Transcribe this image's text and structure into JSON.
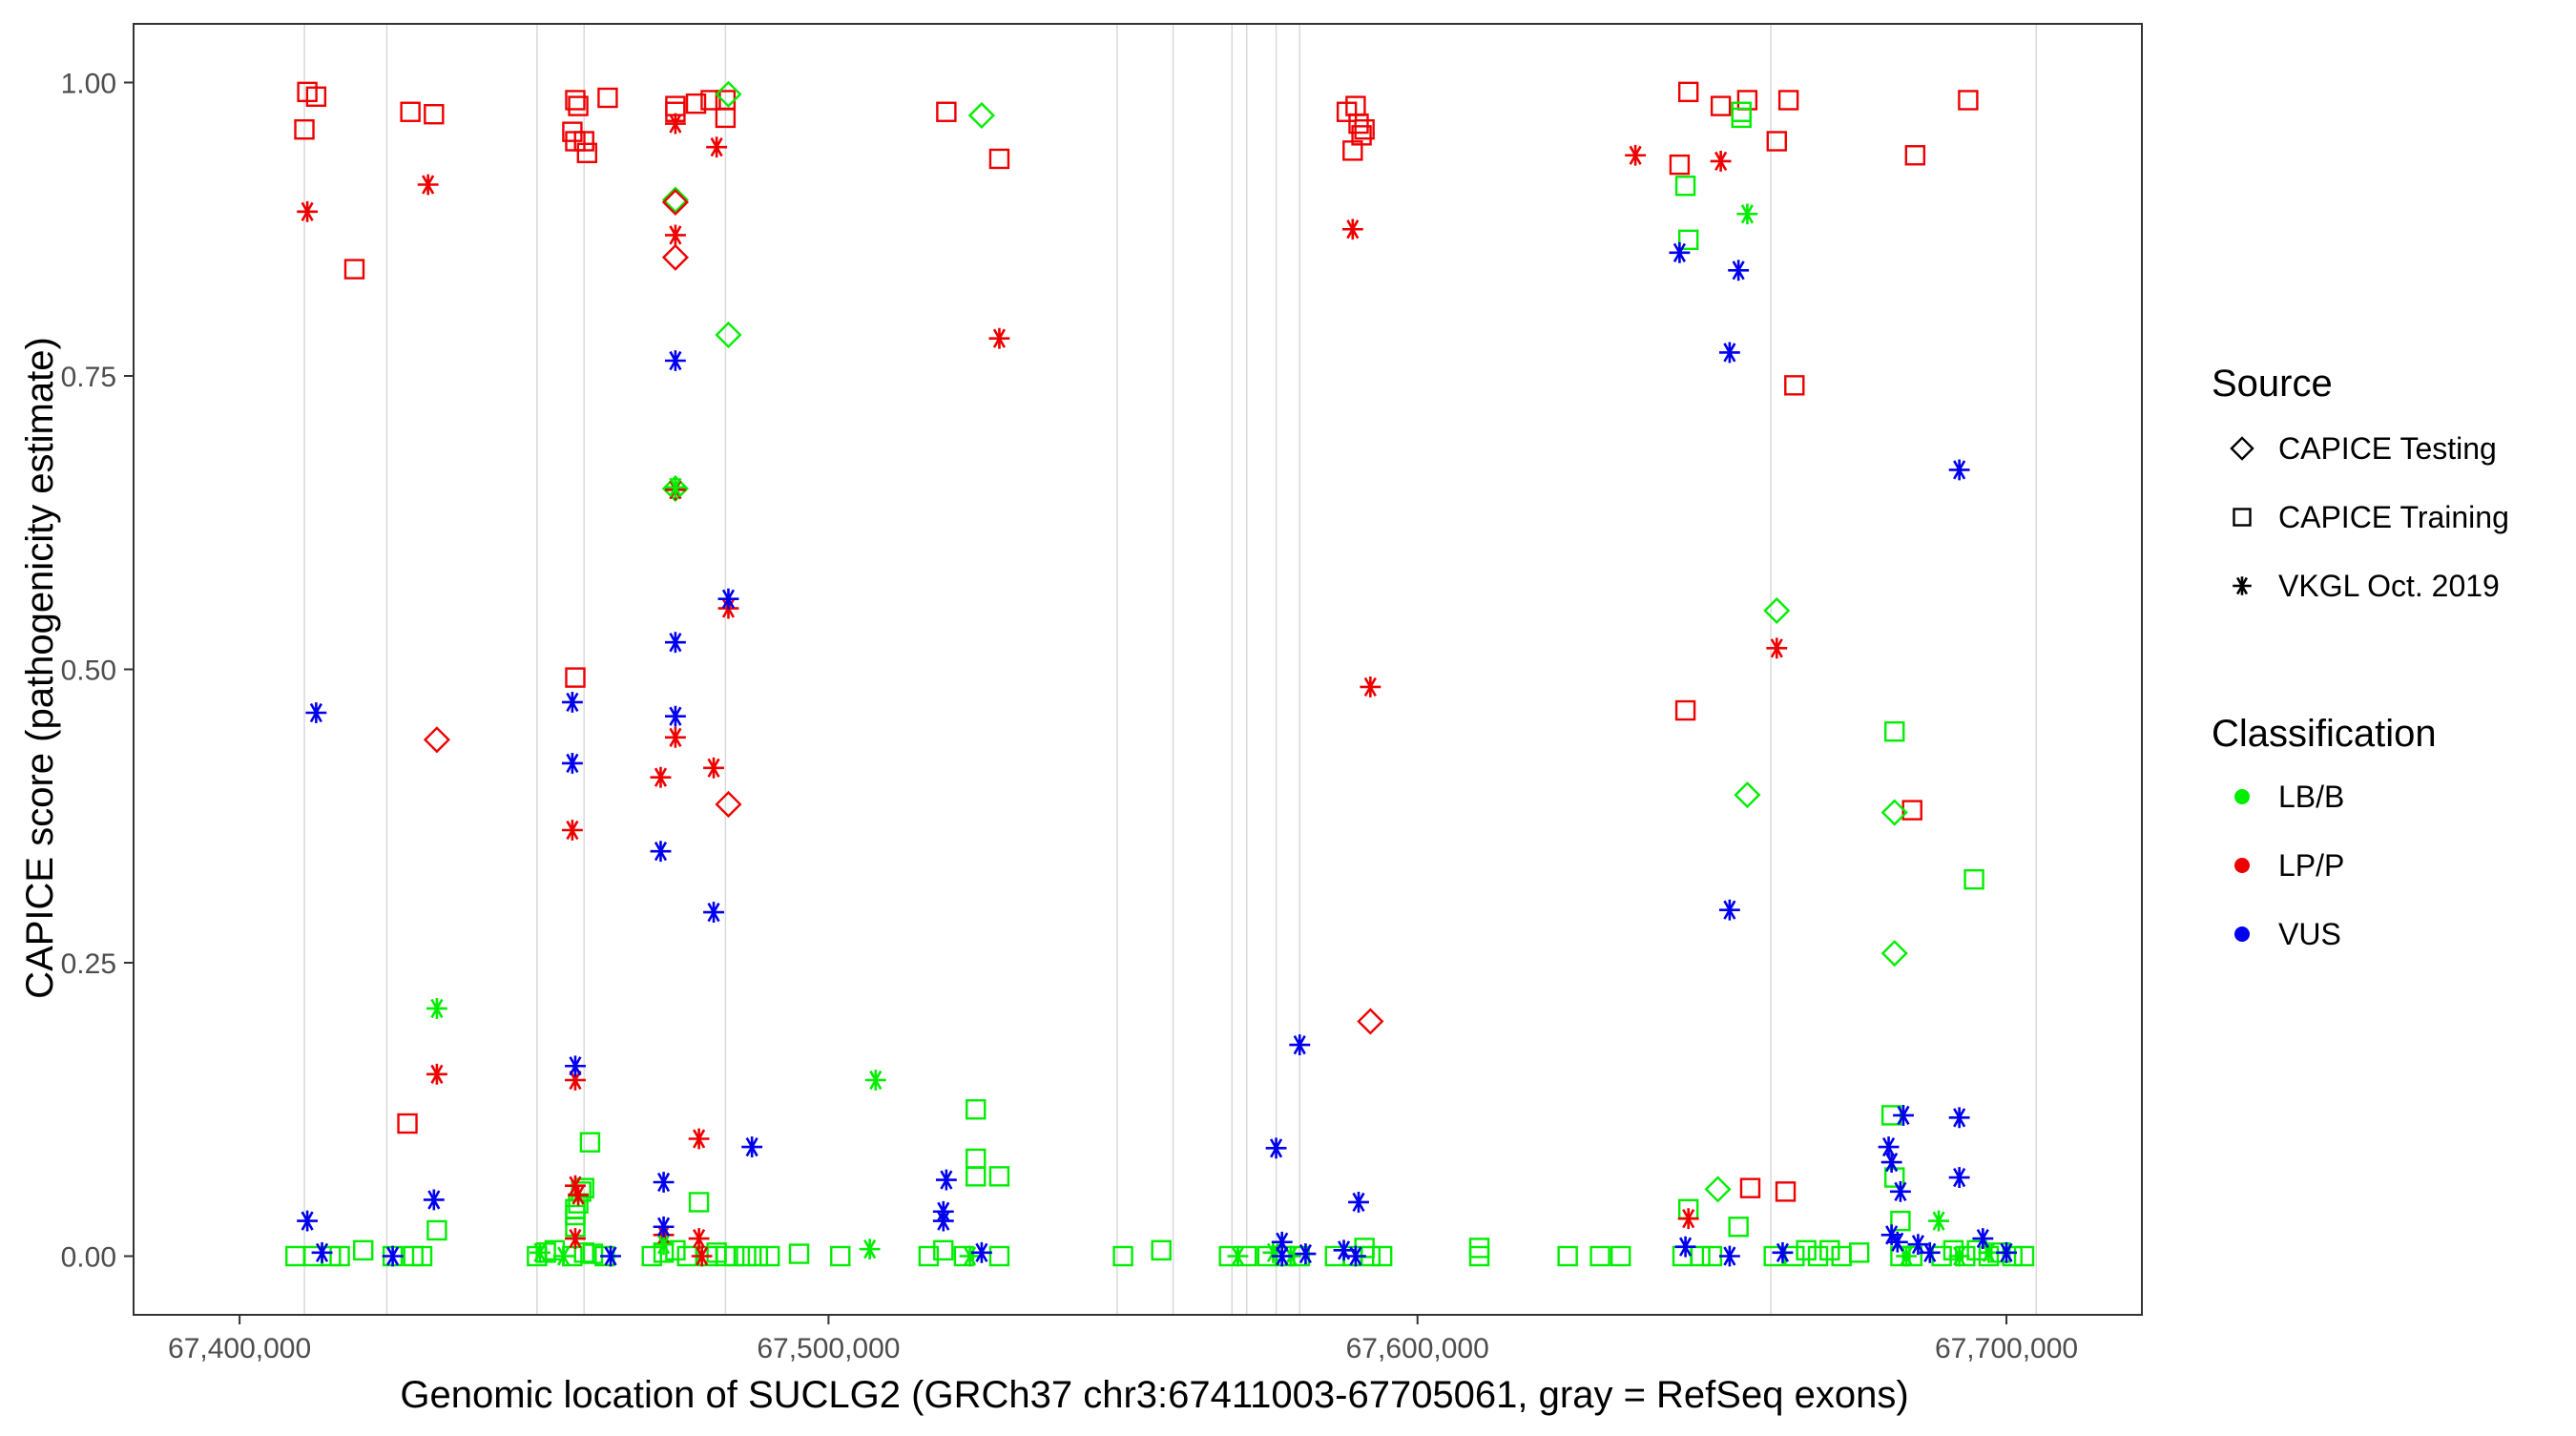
{
  "chart_data": {
    "type": "scatter",
    "title": "",
    "xlabel": "Genomic location of SUCLG2 (GRCh37 chr3:67411003-67705061, gray = RefSeq exons)",
    "ylabel": "CAPICE score (pathogenicity estimate)",
    "xlim": [
      67382000,
      67723000
    ],
    "ylim": [
      -0.05,
      1.05
    ],
    "x_ticks": [
      67400000,
      67500000,
      67600000,
      67700000
    ],
    "x_tick_labels": [
      "67,400,000",
      "67,500,000",
      "67,600,000",
      "67,700,000"
    ],
    "y_ticks": [
      0,
      0.25,
      0.5,
      0.75,
      1.0
    ],
    "y_tick_labels": [
      "0.00",
      "0.25",
      "0.50",
      "0.75",
      "1.00"
    ],
    "grid": false,
    "legend_position": "right",
    "exon_lines": [
      67411003,
      67425000,
      67450500,
      67458500,
      67482500,
      67549000,
      67558500,
      67568500,
      67571000,
      67576000,
      67580000,
      67660000,
      67705061
    ],
    "legends": [
      {
        "title": "Source",
        "entries": [
          {
            "label": "CAPICE Testing",
            "shape": "diamond"
          },
          {
            "label": "CAPICE Training",
            "shape": "square"
          },
          {
            "label": "VKGL Oct. 2019",
            "shape": "star"
          }
        ]
      },
      {
        "title": "Classification",
        "entries": [
          {
            "label": "LB/B",
            "color": "#00ee00"
          },
          {
            "label": "LP/P",
            "color": "#ee0000"
          },
          {
            "label": "VUS",
            "color": "#0000ee"
          }
        ]
      }
    ],
    "colors": {
      "LB/B": "#00ee00",
      "LP/P": "#ee0000",
      "VUS": "#0000ee"
    },
    "series": [
      {
        "name": "CAPICE Training LP/P",
        "shape": "square",
        "class": "LP/P",
        "points": [
          [
            67411500,
            0.992
          ],
          [
            67413000,
            0.988
          ],
          [
            67411000,
            0.96
          ],
          [
            67419500,
            0.841
          ],
          [
            67429000,
            0.975
          ],
          [
            67433000,
            0.973
          ],
          [
            67428500,
            0.113
          ],
          [
            67457000,
            0.985
          ],
          [
            67457500,
            0.98
          ],
          [
            67456500,
            0.958
          ],
          [
            67457000,
            0.95
          ],
          [
            67459000,
            0.94
          ],
          [
            67458500,
            0.95
          ],
          [
            67462500,
            0.987
          ],
          [
            67457000,
            0.493
          ],
          [
            67474000,
            0.98
          ],
          [
            67474000,
            0.975
          ],
          [
            67477500,
            0.982
          ],
          [
            67480000,
            0.985
          ],
          [
            67482500,
            0.985
          ],
          [
            67482500,
            0.97
          ],
          [
            67520000,
            0.975
          ],
          [
            67529000,
            0.935
          ],
          [
            67588000,
            0.975
          ],
          [
            67589500,
            0.98
          ],
          [
            67590000,
            0.965
          ],
          [
            67591000,
            0.96
          ],
          [
            67589000,
            0.942
          ],
          [
            67590500,
            0.955
          ],
          [
            67644500,
            0.93
          ],
          [
            67646000,
            0.992
          ],
          [
            67651500,
            0.98
          ],
          [
            67656000,
            0.985
          ],
          [
            67661000,
            0.95
          ],
          [
            67663000,
            0.985
          ],
          [
            67664000,
            0.742
          ],
          [
            67645500,
            0.465
          ],
          [
            67684500,
            0.938
          ],
          [
            67684000,
            0.38
          ],
          [
            67693500,
            0.985
          ],
          [
            67656500,
            0.058
          ],
          [
            67662500,
            0.055
          ]
        ]
      },
      {
        "name": "CAPICE Training LB/B",
        "shape": "square",
        "class": "LB/B",
        "points": [
          [
            67409500,
            0.0
          ],
          [
            67412500,
            0.0
          ],
          [
            67415500,
            0.0
          ],
          [
            67417000,
            0.0
          ],
          [
            67421000,
            0.005
          ],
          [
            67426000,
            0.0
          ],
          [
            67429500,
            0.0
          ],
          [
            67431000,
            0.0
          ],
          [
            67433500,
            0.022
          ],
          [
            67450500,
            0.0
          ],
          [
            67452000,
            0.003
          ],
          [
            67453500,
            0.005
          ],
          [
            67456500,
            0.0
          ],
          [
            67457000,
            0.025
          ],
          [
            67457000,
            0.035
          ],
          [
            67457000,
            0.04
          ],
          [
            67457500,
            0.045
          ],
          [
            67458000,
            0.055
          ],
          [
            67458500,
            0.058
          ],
          [
            67459500,
            0.097
          ],
          [
            67458500,
            0.003
          ],
          [
            67460000,
            0.002
          ],
          [
            67462000,
            0.0
          ],
          [
            67470000,
            0.0
          ],
          [
            67472000,
            0.003
          ],
          [
            67474000,
            0.005
          ],
          [
            67476000,
            0.0
          ],
          [
            67478000,
            0.046
          ],
          [
            67479500,
            0.0
          ],
          [
            67481000,
            0.003
          ],
          [
            67482500,
            0.0
          ],
          [
            67484000,
            0.0
          ],
          [
            67486000,
            0.0
          ],
          [
            67488000,
            0.0
          ],
          [
            67490000,
            0.0
          ],
          [
            67495000,
            0.002
          ],
          [
            67502000,
            0.0
          ],
          [
            67517000,
            0.0
          ],
          [
            67519500,
            0.005
          ],
          [
            67523000,
            0.0
          ],
          [
            67525000,
            0.125
          ],
          [
            67525000,
            0.083
          ],
          [
            67525000,
            0.068
          ],
          [
            67529000,
            0.068
          ],
          [
            67529000,
            0.0
          ],
          [
            67550000,
            0.0
          ],
          [
            67556500,
            0.005
          ],
          [
            67568000,
            0.0
          ],
          [
            67571000,
            0.0
          ],
          [
            67574500,
            0.0
          ],
          [
            67577500,
            0.0
          ],
          [
            67580000,
            0.0
          ],
          [
            67586000,
            0.0
          ],
          [
            67589000,
            0.0
          ],
          [
            67591000,
            0.007
          ],
          [
            67592000,
            0.0
          ],
          [
            67594000,
            0.0
          ],
          [
            67610500,
            0.0
          ],
          [
            67610500,
            0.007
          ],
          [
            67625500,
            0.0
          ],
          [
            67631000,
            0.0
          ],
          [
            67634500,
            0.0
          ],
          [
            67645000,
            0.0
          ],
          [
            67646000,
            0.04
          ],
          [
            67648000,
            0.0
          ],
          [
            67650000,
            0.0
          ],
          [
            67645500,
            0.912
          ],
          [
            67646000,
            0.866
          ],
          [
            67655000,
            0.97
          ],
          [
            67655000,
            0.975
          ],
          [
            67654500,
            0.025
          ],
          [
            67660500,
            0.0
          ],
          [
            67664000,
            0.0
          ],
          [
            67666000,
            0.005
          ],
          [
            67668000,
            0.0
          ],
          [
            67670000,
            0.005
          ],
          [
            67672000,
            0.0
          ],
          [
            67675000,
            0.003
          ],
          [
            67680500,
            0.12
          ],
          [
            67681000,
            0.067
          ],
          [
            67681000,
            0.447
          ],
          [
            67682000,
            0.03
          ],
          [
            67682000,
            0.0
          ],
          [
            67684000,
            0.0
          ],
          [
            67689000,
            0.0
          ],
          [
            67691000,
            0.005
          ],
          [
            67693000,
            0.0
          ],
          [
            67695000,
            0.005
          ],
          [
            67697000,
            0.0
          ],
          [
            67699000,
            0.003
          ],
          [
            67701000,
            0.0
          ],
          [
            67703000,
            0.0
          ],
          [
            67694500,
            0.321
          ]
        ]
      },
      {
        "name": "CAPICE Testing LB/B",
        "shape": "diamond",
        "class": "LB/B",
        "points": [
          [
            67474000,
            0.9
          ],
          [
            67474000,
            0.654
          ],
          [
            67483000,
            0.99
          ],
          [
            67483000,
            0.785
          ],
          [
            67526000,
            0.972
          ],
          [
            67661000,
            0.55
          ],
          [
            67656000,
            0.393
          ],
          [
            67651000,
            0.057
          ],
          [
            67681000,
            0.378
          ],
          [
            67681000,
            0.258
          ]
        ]
      },
      {
        "name": "CAPICE Testing LP/P",
        "shape": "diamond",
        "class": "LP/P",
        "points": [
          [
            67474000,
            0.898
          ],
          [
            67474000,
            0.851
          ],
          [
            67433500,
            0.44
          ],
          [
            67483000,
            0.385
          ],
          [
            67592000,
            0.2
          ]
        ]
      },
      {
        "name": "VKGL LP/P",
        "shape": "star",
        "class": "LP/P",
        "points": [
          [
            67411500,
            0.89
          ],
          [
            67432000,
            0.913
          ],
          [
            67433500,
            0.155
          ],
          [
            67456500,
            0.363
          ],
          [
            67457000,
            0.15
          ],
          [
            67457000,
            0.06
          ],
          [
            67457000,
            0.015
          ],
          [
            67457500,
            0.052
          ],
          [
            67471500,
            0.408
          ],
          [
            67474000,
            0.965
          ],
          [
            67474000,
            0.87
          ],
          [
            67474000,
            0.653
          ],
          [
            67474000,
            0.442
          ],
          [
            67472000,
            0.018
          ],
          [
            67478000,
            0.1
          ],
          [
            67478000,
            0.015
          ],
          [
            67478500,
            0.0
          ],
          [
            67481000,
            0.945
          ],
          [
            67480500,
            0.416
          ],
          [
            67483000,
            0.552
          ],
          [
            67529000,
            0.782
          ],
          [
            67589000,
            0.875
          ],
          [
            67592000,
            0.485
          ],
          [
            67637000,
            0.938
          ],
          [
            67651500,
            0.933
          ],
          [
            67661000,
            0.518
          ],
          [
            67646000,
            0.032
          ]
        ]
      },
      {
        "name": "VKGL LB/B",
        "shape": "star",
        "class": "LB/B",
        "points": [
          [
            67433500,
            0.211
          ],
          [
            67474000,
            0.655
          ],
          [
            67451000,
            0.003
          ],
          [
            67455000,
            0.0
          ],
          [
            67508000,
            0.15
          ],
          [
            67507000,
            0.006
          ],
          [
            67524000,
            0.0
          ],
          [
            67569500,
            0.0
          ],
          [
            67575500,
            0.003
          ],
          [
            67578500,
            0.0
          ],
          [
            67656000,
            0.888
          ],
          [
            67688500,
            0.03
          ],
          [
            67683000,
            0.0
          ],
          [
            67692000,
            0.0
          ],
          [
            67697000,
            0.003
          ],
          [
            67472000,
            0.01
          ]
        ]
      },
      {
        "name": "VKGL VUS",
        "shape": "star",
        "class": "VUS",
        "points": [
          [
            67411500,
            0.03
          ],
          [
            67413000,
            0.463
          ],
          [
            67414000,
            0.003
          ],
          [
            67426000,
            0.0
          ],
          [
            67433000,
            0.048
          ],
          [
            67456500,
            0.472
          ],
          [
            67456500,
            0.42
          ],
          [
            67457000,
            0.162
          ],
          [
            67463000,
            0.0
          ],
          [
            67471500,
            0.345
          ],
          [
            67472000,
            0.063
          ],
          [
            67472000,
            0.025
          ],
          [
            67474000,
            0.763
          ],
          [
            67474000,
            0.523
          ],
          [
            67474000,
            0.46
          ],
          [
            67480500,
            0.293
          ],
          [
            67483000,
            0.56
          ],
          [
            67487000,
            0.093
          ],
          [
            67520000,
            0.065
          ],
          [
            67519500,
            0.038
          ],
          [
            67519500,
            0.03
          ],
          [
            67526000,
            0.003
          ],
          [
            67576000,
            0.092
          ],
          [
            67577000,
            0.012
          ],
          [
            67577000,
            0.0
          ],
          [
            67580000,
            0.18
          ],
          [
            67581000,
            0.002
          ],
          [
            67587500,
            0.005
          ],
          [
            67590000,
            0.046
          ],
          [
            67589500,
            0.0
          ],
          [
            67644500,
            0.855
          ],
          [
            67654500,
            0.84
          ],
          [
            67653000,
            0.77
          ],
          [
            67653000,
            0.295
          ],
          [
            67645500,
            0.008
          ],
          [
            67653000,
            0.0
          ],
          [
            67662000,
            0.003
          ],
          [
            67680000,
            0.093
          ],
          [
            67680500,
            0.08
          ],
          [
            67682000,
            0.055
          ],
          [
            67682500,
            0.12
          ],
          [
            67680500,
            0.018
          ],
          [
            67681500,
            0.012
          ],
          [
            67685000,
            0.01
          ],
          [
            67687000,
            0.003
          ],
          [
            67692000,
            0.67
          ],
          [
            67692000,
            0.118
          ],
          [
            67692000,
            0.067
          ],
          [
            67696000,
            0.015
          ],
          [
            67700000,
            0.003
          ]
        ]
      }
    ]
  }
}
